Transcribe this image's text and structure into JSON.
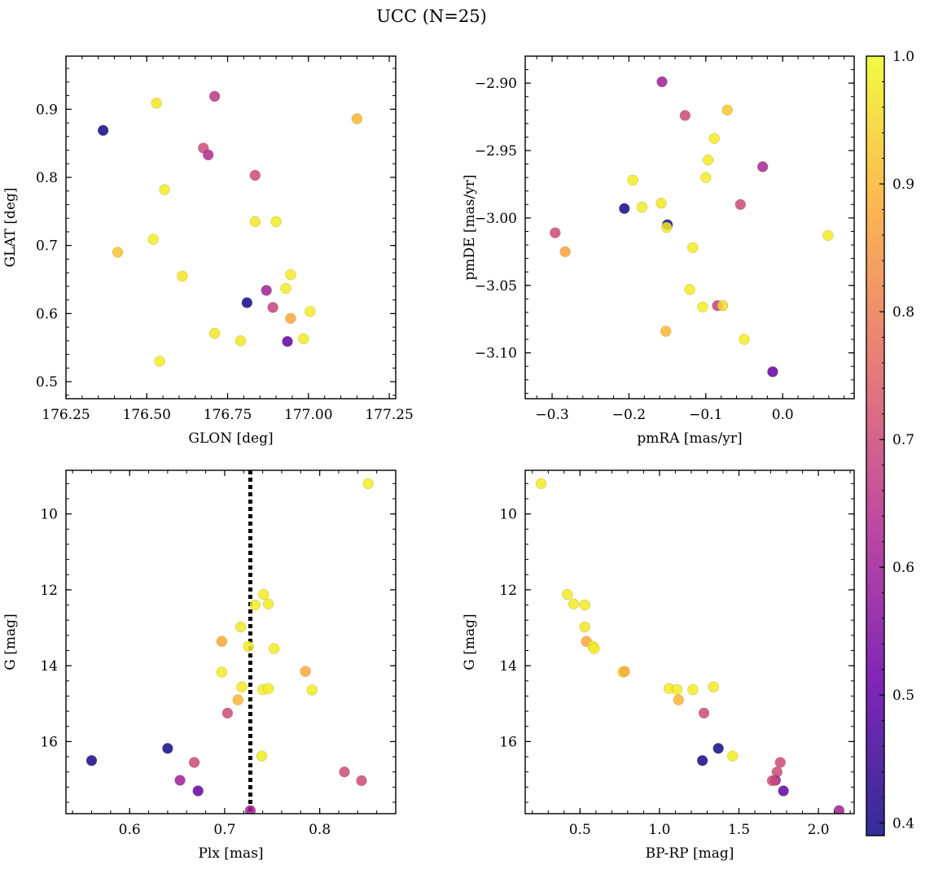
{
  "suptitle": "UCC (N=25)",
  "colorbar": {
    "vmin": 0.39,
    "vmax": 1.0,
    "ticks": [
      0.4,
      0.5,
      0.6,
      0.7,
      0.8,
      0.9,
      1.0
    ],
    "tick_labels": [
      "0.4",
      "0.5",
      "0.6",
      "0.7",
      "0.8",
      "0.9",
      "1.0"
    ],
    "colormap": "plasma",
    "colormap_stops": [
      "#0d0887",
      "#6a00a8",
      "#b12a90",
      "#e16462",
      "#fca636",
      "#f0f921"
    ]
  },
  "chart_data": [
    {
      "type": "scatter",
      "id": "radec",
      "xlabel": "GLON [deg]",
      "ylabel": "GLAT [deg]",
      "xlim": [
        176.25,
        177.27
      ],
      "ylim": [
        0.475,
        0.978
      ],
      "xticks": [
        176.25,
        176.5,
        176.75,
        177.0,
        177.25
      ],
      "xtick_labels": [
        "176.25",
        "176.50",
        "176.75",
        "177.00",
        "177.25"
      ],
      "yticks": [
        0.5,
        0.6,
        0.7,
        0.8,
        0.9
      ],
      "ytick_labels": [
        "0.5",
        "0.6",
        "0.7",
        "0.8",
        "0.9"
      ],
      "yinvert": false,
      "points": [
        {
          "x": 176.365,
          "y": 0.869,
          "c": 0.4
        },
        {
          "x": 176.53,
          "y": 0.909,
          "c": 0.97
        },
        {
          "x": 176.71,
          "y": 0.919,
          "c": 0.66
        },
        {
          "x": 177.15,
          "y": 0.886,
          "c": 0.9
        },
        {
          "x": 176.675,
          "y": 0.843,
          "c": 0.7
        },
        {
          "x": 176.69,
          "y": 0.833,
          "c": 0.63
        },
        {
          "x": 176.835,
          "y": 0.803,
          "c": 0.7
        },
        {
          "x": 176.555,
          "y": 0.782,
          "c": 0.98
        },
        {
          "x": 176.835,
          "y": 0.735,
          "c": 0.97
        },
        {
          "x": 176.9,
          "y": 0.735,
          "c": 0.98
        },
        {
          "x": 176.52,
          "y": 0.709,
          "c": 0.98
        },
        {
          "x": 176.41,
          "y": 0.69,
          "c": 0.92
        },
        {
          "x": 176.61,
          "y": 0.655,
          "c": 0.97
        },
        {
          "x": 176.945,
          "y": 0.657,
          "c": 0.98
        },
        {
          "x": 176.93,
          "y": 0.637,
          "c": 0.98
        },
        {
          "x": 176.87,
          "y": 0.634,
          "c": 0.6
        },
        {
          "x": 176.81,
          "y": 0.616,
          "c": 0.4
        },
        {
          "x": 176.89,
          "y": 0.609,
          "c": 0.68
        },
        {
          "x": 177.005,
          "y": 0.603,
          "c": 0.98
        },
        {
          "x": 176.945,
          "y": 0.593,
          "c": 0.88
        },
        {
          "x": 176.71,
          "y": 0.571,
          "c": 0.97
        },
        {
          "x": 176.79,
          "y": 0.56,
          "c": 0.97
        },
        {
          "x": 176.985,
          "y": 0.563,
          "c": 0.98
        },
        {
          "x": 176.935,
          "y": 0.559,
          "c": 0.5
        },
        {
          "x": 176.54,
          "y": 0.53,
          "c": 0.98
        }
      ]
    },
    {
      "type": "scatter",
      "id": "pm",
      "xlabel": "pmRA [mas/yr]",
      "ylabel": "pmDE [mas/yr]",
      "xlim": [
        -0.335,
        0.093
      ],
      "ylim": [
        -3.134,
        -2.88
      ],
      "xticks": [
        -0.3,
        -0.2,
        -0.1,
        0.0
      ],
      "xtick_labels": [
        "−0.3",
        "−0.2",
        "−0.1",
        "0.0"
      ],
      "yticks": [
        -2.9,
        -2.95,
        -3.0,
        -3.05,
        -3.1
      ],
      "ytick_labels": [
        "−2.90",
        "−2.95",
        "−3.00",
        "−3.05",
        "−3.10"
      ],
      "yinvert": false,
      "points": [
        {
          "x": -0.157,
          "y": -2.899,
          "c": 0.6
        },
        {
          "x": -0.127,
          "y": -2.924,
          "c": 0.7
        },
        {
          "x": -0.072,
          "y": -2.92,
          "c": 0.93
        },
        {
          "x": -0.089,
          "y": -2.941,
          "c": 0.98
        },
        {
          "x": -0.097,
          "y": -2.957,
          "c": 0.98
        },
        {
          "x": -0.026,
          "y": -2.962,
          "c": 0.62
        },
        {
          "x": -0.195,
          "y": -2.972,
          "c": 0.98
        },
        {
          "x": -0.1,
          "y": -2.97,
          "c": 0.98
        },
        {
          "x": -0.158,
          "y": -2.989,
          "c": 0.97
        },
        {
          "x": -0.183,
          "y": -2.992,
          "c": 0.98
        },
        {
          "x": -0.206,
          "y": -2.993,
          "c": 0.4
        },
        {
          "x": -0.055,
          "y": -2.99,
          "c": 0.7
        },
        {
          "x": -0.15,
          "y": -3.005,
          "c": 0.4
        },
        {
          "x": -0.151,
          "y": -3.007,
          "c": 0.98
        },
        {
          "x": -0.296,
          "y": -3.011,
          "c": 0.7
        },
        {
          "x": 0.059,
          "y": -3.013,
          "c": 0.98
        },
        {
          "x": -0.283,
          "y": -3.025,
          "c": 0.87
        },
        {
          "x": -0.117,
          "y": -3.022,
          "c": 0.98
        },
        {
          "x": -0.121,
          "y": -3.053,
          "c": 0.98
        },
        {
          "x": -0.085,
          "y": -3.065,
          "c": 0.68
        },
        {
          "x": -0.104,
          "y": -3.066,
          "c": 0.98
        },
        {
          "x": -0.078,
          "y": -3.065,
          "c": 0.95
        },
        {
          "x": -0.152,
          "y": -3.084,
          "c": 0.9
        },
        {
          "x": -0.05,
          "y": -3.09,
          "c": 0.98
        },
        {
          "x": -0.013,
          "y": -3.114,
          "c": 0.5
        }
      ]
    },
    {
      "type": "scatter",
      "id": "plx",
      "xlabel": "Plx [mas]",
      "ylabel": "G [mag]",
      "xlim": [
        0.533,
        0.88
      ],
      "ylim": [
        17.9,
        8.85
      ],
      "xticks": [
        0.6,
        0.7,
        0.8
      ],
      "xtick_labels": [
        "0.6",
        "0.7",
        "0.8"
      ],
      "yticks": [
        10,
        12,
        14,
        16
      ],
      "ytick_labels": [
        "10",
        "12",
        "14",
        "16"
      ],
      "yinvert": true,
      "vline": {
        "x": 0.727,
        "style": "dotted"
      },
      "points": [
        {
          "x": 0.851,
          "y": 9.2,
          "c": 0.98
        },
        {
          "x": 0.741,
          "y": 12.12,
          "c": 0.98
        },
        {
          "x": 0.732,
          "y": 12.4,
          "c": 0.98
        },
        {
          "x": 0.746,
          "y": 12.37,
          "c": 0.98
        },
        {
          "x": 0.717,
          "y": 12.98,
          "c": 0.97
        },
        {
          "x": 0.697,
          "y": 13.36,
          "c": 0.88
        },
        {
          "x": 0.725,
          "y": 13.49,
          "c": 0.98
        },
        {
          "x": 0.752,
          "y": 13.55,
          "c": 0.98
        },
        {
          "x": 0.697,
          "y": 14.17,
          "c": 0.98
        },
        {
          "x": 0.785,
          "y": 14.15,
          "c": 0.88
        },
        {
          "x": 0.718,
          "y": 14.56,
          "c": 0.98
        },
        {
          "x": 0.74,
          "y": 14.63,
          "c": 0.98
        },
        {
          "x": 0.746,
          "y": 14.6,
          "c": 0.98
        },
        {
          "x": 0.792,
          "y": 14.64,
          "c": 0.98
        },
        {
          "x": 0.714,
          "y": 14.9,
          "c": 0.9
        },
        {
          "x": 0.703,
          "y": 15.25,
          "c": 0.7
        },
        {
          "x": 0.64,
          "y": 16.18,
          "c": 0.4
        },
        {
          "x": 0.56,
          "y": 16.5,
          "c": 0.4
        },
        {
          "x": 0.739,
          "y": 16.38,
          "c": 0.98
        },
        {
          "x": 0.668,
          "y": 16.55,
          "c": 0.7
        },
        {
          "x": 0.826,
          "y": 16.8,
          "c": 0.7
        },
        {
          "x": 0.653,
          "y": 17.02,
          "c": 0.6
        },
        {
          "x": 0.844,
          "y": 17.03,
          "c": 0.7
        },
        {
          "x": 0.672,
          "y": 17.3,
          "c": 0.5
        },
        {
          "x": 0.727,
          "y": 17.82,
          "c": 0.6
        }
      ]
    },
    {
      "type": "scatter",
      "id": "cmd",
      "xlabel": "BP-RP [mag]",
      "ylabel": "G [mag]",
      "xlim": [
        0.155,
        2.225
      ],
      "ylim": [
        17.9,
        8.85
      ],
      "xticks": [
        0.5,
        1.0,
        1.5,
        2.0
      ],
      "xtick_labels": [
        "0.5",
        "1.0",
        "1.5",
        "2.0"
      ],
      "yticks": [
        10,
        12,
        14,
        16
      ],
      "ytick_labels": [
        "10",
        "12",
        "14",
        "16"
      ],
      "yinvert": true,
      "points": [
        {
          "x": 0.255,
          "y": 9.2,
          "c": 0.98
        },
        {
          "x": 0.42,
          "y": 12.12,
          "c": 0.98
        },
        {
          "x": 0.46,
          "y": 12.37,
          "c": 0.98
        },
        {
          "x": 0.53,
          "y": 12.4,
          "c": 0.98
        },
        {
          "x": 0.53,
          "y": 12.98,
          "c": 0.97
        },
        {
          "x": 0.54,
          "y": 13.36,
          "c": 0.88
        },
        {
          "x": 0.58,
          "y": 13.49,
          "c": 0.98
        },
        {
          "x": 0.59,
          "y": 13.55,
          "c": 0.98
        },
        {
          "x": 0.77,
          "y": 14.17,
          "c": 0.98
        },
        {
          "x": 0.78,
          "y": 14.15,
          "c": 0.88
        },
        {
          "x": 1.06,
          "y": 14.6,
          "c": 0.98
        },
        {
          "x": 1.11,
          "y": 14.63,
          "c": 0.98
        },
        {
          "x": 1.21,
          "y": 14.63,
          "c": 0.98
        },
        {
          "x": 1.34,
          "y": 14.56,
          "c": 0.98
        },
        {
          "x": 1.12,
          "y": 14.9,
          "c": 0.9
        },
        {
          "x": 1.28,
          "y": 15.25,
          "c": 0.7
        },
        {
          "x": 1.37,
          "y": 16.18,
          "c": 0.4
        },
        {
          "x": 1.27,
          "y": 16.5,
          "c": 0.4
        },
        {
          "x": 1.46,
          "y": 16.38,
          "c": 0.98
        },
        {
          "x": 1.76,
          "y": 16.55,
          "c": 0.7
        },
        {
          "x": 1.74,
          "y": 16.8,
          "c": 0.7
        },
        {
          "x": 1.73,
          "y": 17.02,
          "c": 0.6
        },
        {
          "x": 1.71,
          "y": 17.03,
          "c": 0.7
        },
        {
          "x": 1.78,
          "y": 17.3,
          "c": 0.5
        },
        {
          "x": 2.13,
          "y": 17.82,
          "c": 0.6
        }
      ]
    }
  ]
}
